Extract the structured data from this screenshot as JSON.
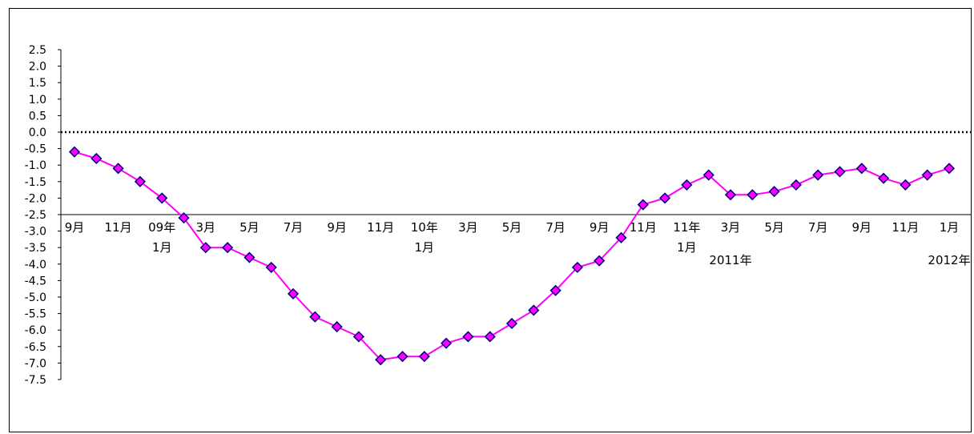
{
  "chart_data": {
    "type": "line",
    "title": "",
    "xlabel": "",
    "ylabel": "",
    "ylim": [
      -7.5,
      2.5
    ],
    "y_ticks": [
      "2.5",
      "2.0",
      "1.5",
      "1.0",
      "0.5",
      "0.0",
      "-0.5",
      "-1.0",
      "-1.5",
      "-2.0",
      "-2.5",
      "-3.0",
      "-3.5",
      "-4.0",
      "-4.5",
      "-5.0",
      "-5.5",
      "-6.0",
      "-6.5",
      "-7.0",
      "-7.5"
    ],
    "reference_line": 0.0,
    "x_tick_labels": [
      {
        "i": 0,
        "line1": "9月",
        "line2": ""
      },
      {
        "i": 2,
        "line1": "11月",
        "line2": ""
      },
      {
        "i": 4,
        "line1": "09年",
        "line2": "1月"
      },
      {
        "i": 6,
        "line1": "3月",
        "line2": ""
      },
      {
        "i": 8,
        "line1": "5月",
        "line2": ""
      },
      {
        "i": 10,
        "line1": "7月",
        "line2": ""
      },
      {
        "i": 12,
        "line1": "9月",
        "line2": ""
      },
      {
        "i": 14,
        "line1": "11月",
        "line2": ""
      },
      {
        "i": 16,
        "line1": "10年",
        "line2": "1月"
      },
      {
        "i": 18,
        "line1": "3月",
        "line2": ""
      },
      {
        "i": 20,
        "line1": "5月",
        "line2": ""
      },
      {
        "i": 22,
        "line1": "7月",
        "line2": ""
      },
      {
        "i": 24,
        "line1": "9月",
        "line2": ""
      },
      {
        "i": 26,
        "line1": "11月",
        "line2": ""
      },
      {
        "i": 28,
        "line1": "11年",
        "line2": "1月"
      },
      {
        "i": 30,
        "line1": "3月",
        "line2": ""
      },
      {
        "i": 32,
        "line1": "5月",
        "line2": ""
      },
      {
        "i": 34,
        "line1": "7月",
        "line2": ""
      },
      {
        "i": 36,
        "line1": "9月",
        "line2": ""
      },
      {
        "i": 38,
        "line1": "11月",
        "line2": ""
      },
      {
        "i": 40,
        "line1": "1月",
        "line2": ""
      }
    ],
    "year_annotations": [
      {
        "i": 30,
        "text": "2011年"
      },
      {
        "i": 40,
        "text": "2012年"
      }
    ],
    "series": [
      {
        "color": "#ff00ff",
        "marker_fill": "#ff00ff",
        "marker_edge": "#000080",
        "values": [
          -0.6,
          -0.8,
          -1.1,
          -1.5,
          -2.0,
          -2.6,
          -3.5,
          -3.5,
          -3.8,
          -4.1,
          -4.9,
          -5.6,
          -5.9,
          -6.2,
          -6.9,
          -6.8,
          -6.8,
          -6.4,
          -6.2,
          -6.2,
          -5.8,
          -5.4,
          -4.8,
          -4.1,
          -3.9,
          -3.2,
          -2.2,
          -2.0,
          -1.6,
          -1.3,
          -1.9,
          -1.9,
          -1.8,
          -1.6,
          -1.3,
          -1.2,
          -1.1,
          -1.4,
          -1.6,
          -1.3,
          -1.1
        ]
      }
    ]
  }
}
